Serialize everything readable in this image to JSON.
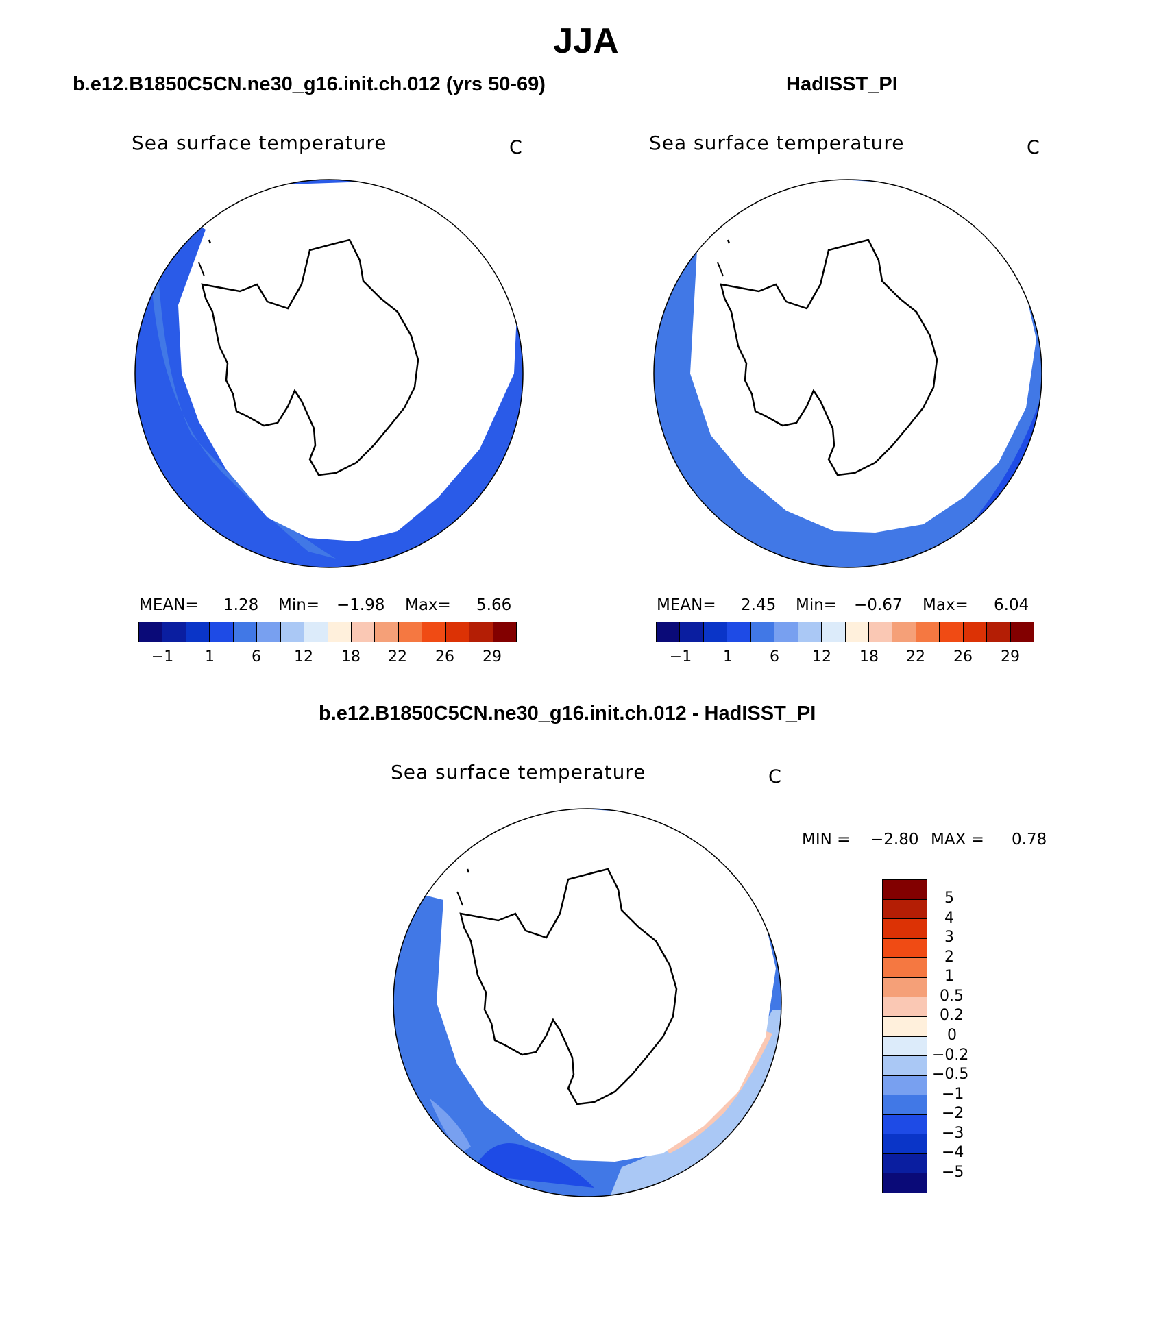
{
  "figure": {
    "title": "JJA",
    "panel1_title": "b.e12.B1850C5CN.ne30_g16.init.ch.012 (yrs 50-69)",
    "panel2_title": "HadISST_PI",
    "diff_title": "b.e12.B1850C5CN.ne30_g16.init.ch.012 - HadISST_PI"
  },
  "panels": {
    "model": {
      "variable": "Sea surface temperature",
      "units": "C",
      "mean_label": "MEAN=",
      "mean": "1.28",
      "min_label": "Min=",
      "min": "−1.98",
      "max_label": "Max=",
      "max": "5.66"
    },
    "obs": {
      "variable": "Sea surface temperature",
      "units": "C",
      "mean_label": "MEAN=",
      "mean": "2.45",
      "min_label": "Min=",
      "min": "−0.67",
      "max_label": "Max=",
      "max": "6.04"
    },
    "diff": {
      "variable": "Sea surface temperature",
      "units": "C",
      "min_label": "MIN =",
      "min": "−2.80",
      "max_label": "MAX =",
      "max": "0.78"
    }
  },
  "colorbar_abs": {
    "colors": [
      "#0a0a78",
      "#0a1ea0",
      "#0a35c8",
      "#1e4be6",
      "#4178e6",
      "#78a0f0",
      "#aac8f5",
      "#dcebfa",
      "#fff0dc",
      "#fac8b4",
      "#f5a078",
      "#f57841",
      "#f04b14",
      "#dc3205",
      "#b41e05",
      "#820000"
    ],
    "ticks": [
      "−1",
      "1",
      "6",
      "12",
      "18",
      "22",
      "26",
      "29"
    ]
  },
  "colorbar_diff": {
    "colors": [
      "#820000",
      "#b41e05",
      "#dc3205",
      "#f04b14",
      "#f57841",
      "#f5a078",
      "#fac8b4",
      "#fff0dc",
      "#dcebfa",
      "#aac8f5",
      "#78a0f0",
      "#4178e6",
      "#1e4be6",
      "#0a35c8",
      "#0a1ea0",
      "#0a0a78"
    ],
    "ticks": [
      "5",
      "4",
      "3",
      "2",
      "1",
      "0.5",
      "0.2",
      "0",
      "−0.2",
      "−0.5",
      "−1",
      "−2",
      "−3",
      "−4",
      "−5"
    ]
  }
}
